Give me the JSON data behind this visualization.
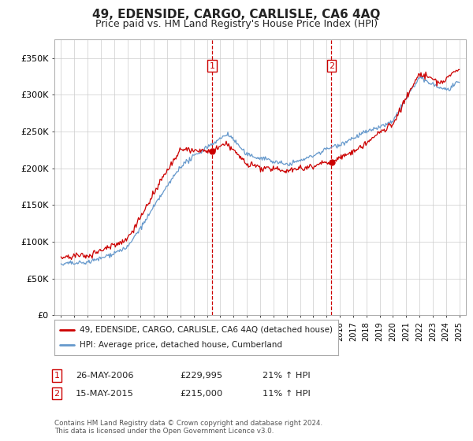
{
  "title": "49, EDENSIDE, CARGO, CARLISLE, CA6 4AQ",
  "subtitle": "Price paid vs. HM Land Registry's House Price Index (HPI)",
  "hpi_label": "HPI: Average price, detached house, Cumberland",
  "property_label": "49, EDENSIDE, CARGO, CARLISLE, CA6 4AQ (detached house)",
  "footer1": "Contains HM Land Registry data © Crown copyright and database right 2024.",
  "footer2": "This data is licensed under the Open Government Licence v3.0.",
  "sale1_date": "26-MAY-2006",
  "sale1_price": 229995,
  "sale1_hpi": "21% ↑ HPI",
  "sale2_date": "15-MAY-2015",
  "sale2_price": 215000,
  "sale2_hpi": "11% ↑ HPI",
  "sale1_x": 2006.39,
  "sale2_x": 2015.37,
  "ylim_min": 0,
  "ylim_max": 375000,
  "xlim_min": 1994.5,
  "xlim_max": 2025.5,
  "property_color": "#cc0000",
  "hpi_color": "#6699cc",
  "vline_color": "#cc0000",
  "background_color": "#ffffff",
  "grid_color": "#cccccc",
  "title_fontsize": 11,
  "subtitle_fontsize": 9,
  "ytick_labels": [
    "£0",
    "£50K",
    "£100K",
    "£150K",
    "£200K",
    "£250K",
    "£300K",
    "£350K"
  ],
  "ytick_values": [
    0,
    50000,
    100000,
    150000,
    200000,
    250000,
    300000,
    350000
  ],
  "xtick_start": 1995,
  "xtick_end": 2025
}
